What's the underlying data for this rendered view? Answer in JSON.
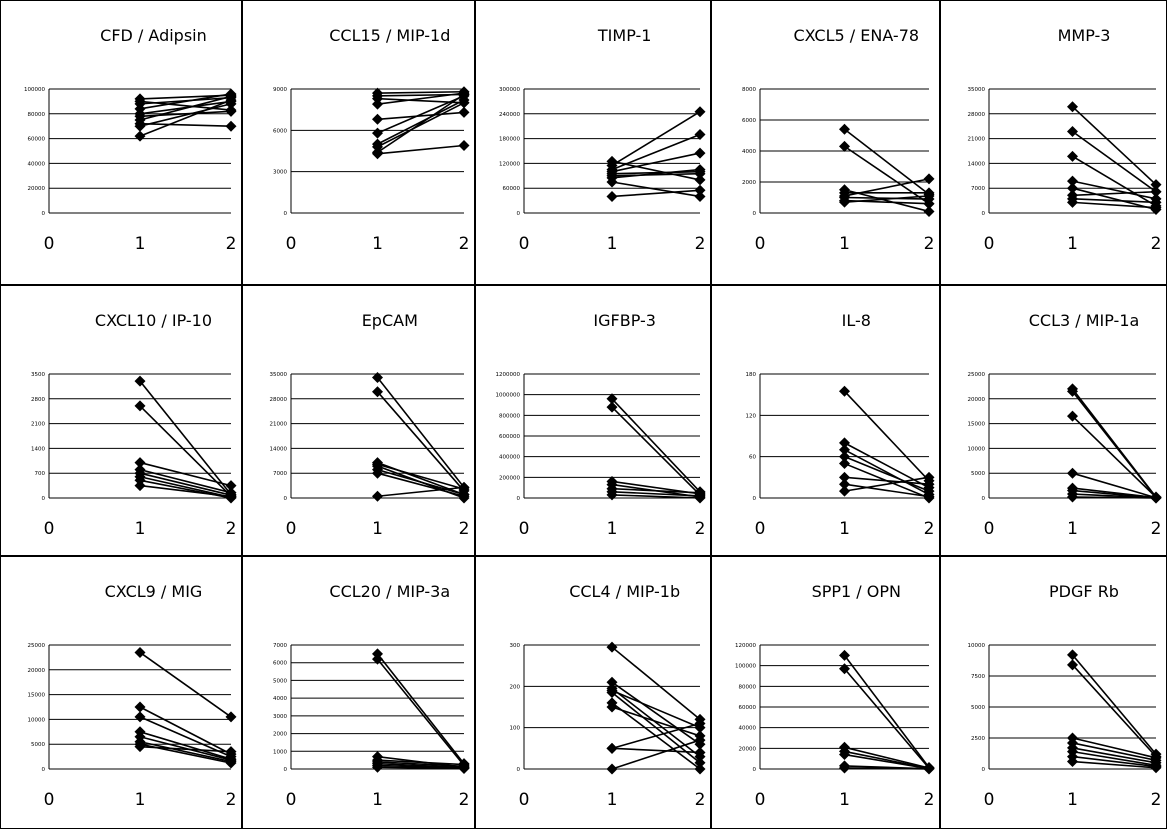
{
  "chart_data": [
    {
      "type": "line",
      "title": "CFD / Adipsin",
      "xticks": [
        "0",
        "1",
        "2"
      ],
      "xlim": [
        0,
        2
      ],
      "ylim": [
        0,
        100000
      ],
      "yticks": [
        "0",
        "20000",
        "40000",
        "60000",
        "80000",
        "100000"
      ],
      "grid": true,
      "lines": [
        [
          92000,
          95000
        ],
        [
          88000,
          93000
        ],
        [
          84000,
          96000
        ],
        [
          80000,
          90000
        ],
        [
          78000,
          82000
        ],
        [
          75000,
          94000
        ],
        [
          72000,
          70000
        ],
        [
          70000,
          88000
        ],
        [
          62000,
          91000
        ],
        [
          90000,
          83000
        ]
      ]
    },
    {
      "type": "line",
      "title": "CCL15 / MIP-1d",
      "xticks": [
        "0",
        "1",
        "2"
      ],
      "xlim": [
        0,
        2
      ],
      "ylim": [
        0,
        9000
      ],
      "yticks": [
        "0",
        "3000",
        "6000",
        "9000"
      ],
      "grid": true,
      "lines": [
        [
          8700,
          8800
        ],
        [
          8500,
          8600
        ],
        [
          8300,
          8000
        ],
        [
          7900,
          8700
        ],
        [
          6800,
          7300
        ],
        [
          5800,
          8500
        ],
        [
          5000,
          8200
        ],
        [
          4800,
          8000
        ],
        [
          4300,
          4900
        ],
        [
          4400,
          8600
        ]
      ]
    },
    {
      "type": "line",
      "title": "TIMP-1",
      "xticks": [
        "0",
        "1",
        "2"
      ],
      "xlim": [
        0,
        2
      ],
      "ylim": [
        0,
        300000
      ],
      "yticks": [
        "0",
        "60000",
        "120000",
        "180000",
        "240000",
        "300000"
      ],
      "grid": true,
      "lines": [
        [
          125000,
          80000
        ],
        [
          115000,
          245000
        ],
        [
          105000,
          190000
        ],
        [
          100000,
          145000
        ],
        [
          90000,
          95000
        ],
        [
          85000,
          105000
        ],
        [
          75000,
          40000
        ],
        [
          95000,
          100000
        ],
        [
          40000,
          55000
        ]
      ]
    },
    {
      "type": "line",
      "title": "CXCL5 / ENA-78",
      "xticks": [
        "0",
        "1",
        "2"
      ],
      "xlim": [
        0,
        2
      ],
      "ylim": [
        0,
        8000
      ],
      "yticks": [
        "0",
        "2000",
        "4000",
        "6000",
        "8000"
      ],
      "grid": true,
      "lines": [
        [
          5400,
          1200
        ],
        [
          4300,
          600
        ],
        [
          1500,
          100
        ],
        [
          1300,
          1300
        ],
        [
          1100,
          2200
        ],
        [
          1000,
          900
        ],
        [
          800,
          600
        ],
        [
          700,
          1100
        ]
      ]
    },
    {
      "type": "line",
      "title": "MMP-3",
      "xticks": [
        "0",
        "1",
        "2"
      ],
      "xlim": [
        0,
        2
      ],
      "ylim": [
        0,
        35000
      ],
      "yticks": [
        "0",
        "7000",
        "14000",
        "21000",
        "28000",
        "35000"
      ],
      "grid": true,
      "lines": [
        [
          30000,
          8000
        ],
        [
          23000,
          6000
        ],
        [
          16000,
          2000
        ],
        [
          9000,
          4000
        ],
        [
          7000,
          1000
        ],
        [
          5000,
          6000
        ],
        [
          4000,
          3000
        ],
        [
          3000,
          1500
        ]
      ]
    },
    {
      "type": "line",
      "title": "CXCL10 / IP-10",
      "xticks": [
        "0",
        "1",
        "2"
      ],
      "xlim": [
        0,
        2
      ],
      "ylim": [
        0,
        3500
      ],
      "yticks": [
        "0",
        "700",
        "1400",
        "2100",
        "2800",
        "3500"
      ],
      "grid": true,
      "lines": [
        [
          3300,
          100
        ],
        [
          2600,
          50
        ],
        [
          1000,
          350
        ],
        [
          800,
          150
        ],
        [
          700,
          80
        ],
        [
          600,
          20
        ],
        [
          500,
          0
        ],
        [
          350,
          40
        ]
      ]
    },
    {
      "type": "line",
      "title": "EpCAM",
      "xticks": [
        "0",
        "1",
        "2"
      ],
      "xlim": [
        0,
        2
      ],
      "ylim": [
        0,
        35000
      ],
      "yticks": [
        "0",
        "7000",
        "14000",
        "21000",
        "28000",
        "35000"
      ],
      "grid": true,
      "lines": [
        [
          34000,
          3000
        ],
        [
          30000,
          2000
        ],
        [
          10000,
          1000
        ],
        [
          9500,
          2500
        ],
        [
          9000,
          0
        ],
        [
          8000,
          1000
        ],
        [
          7000,
          500
        ],
        [
          500,
          3000
        ]
      ]
    },
    {
      "type": "line",
      "title": "IGFBP-3",
      "xticks": [
        "0",
        "1",
        "2"
      ],
      "xlim": [
        0,
        2
      ],
      "ylim": [
        0,
        1200000
      ],
      "yticks": [
        "0",
        "200000",
        "400000",
        "600000",
        "800000",
        "1000000",
        "1200000"
      ],
      "grid": true,
      "lines": [
        [
          960000,
          60000
        ],
        [
          880000,
          30000
        ],
        [
          160000,
          40000
        ],
        [
          130000,
          10000
        ],
        [
          90000,
          50000
        ],
        [
          60000,
          20000
        ],
        [
          30000,
          0
        ]
      ]
    },
    {
      "type": "line",
      "title": "IL-8",
      "xticks": [
        "0",
        "1",
        "2"
      ],
      "xlim": [
        0,
        2
      ],
      "ylim": [
        0,
        180
      ],
      "yticks": [
        "0",
        "60",
        "120",
        "180"
      ],
      "grid": true,
      "lines": [
        [
          155,
          25
        ],
        [
          80,
          15
        ],
        [
          70,
          5
        ],
        [
          60,
          10
        ],
        [
          50,
          0
        ],
        [
          30,
          20
        ],
        [
          20,
          2
        ],
        [
          10,
          30
        ]
      ]
    },
    {
      "type": "line",
      "title": "CCL3 / MIP-1a",
      "xticks": [
        "0",
        "1",
        "2"
      ],
      "xlim": [
        0,
        2
      ],
      "ylim": [
        0,
        25000
      ],
      "yticks": [
        "0",
        "5000",
        "10000",
        "15000",
        "20000",
        "25000"
      ],
      "grid": true,
      "lines": [
        [
          22000,
          200
        ],
        [
          21500,
          100
        ],
        [
          16500,
          150
        ],
        [
          5000,
          50
        ],
        [
          2000,
          80
        ],
        [
          1500,
          30
        ],
        [
          800,
          20
        ],
        [
          200,
          10
        ]
      ]
    },
    {
      "type": "line",
      "title": "CXCL9 / MIG",
      "xticks": [
        "0",
        "1",
        "2"
      ],
      "xlim": [
        0,
        2
      ],
      "ylim": [
        0,
        25000
      ],
      "yticks": [
        "0",
        "5000",
        "10000",
        "15000",
        "20000",
        "25000"
      ],
      "grid": true,
      "lines": [
        [
          23500,
          10500
        ],
        [
          12500,
          3000
        ],
        [
          10500,
          2500
        ],
        [
          7500,
          2000
        ],
        [
          6500,
          1800
        ],
        [
          5500,
          1500
        ],
        [
          5000,
          1200
        ],
        [
          4500,
          3500
        ]
      ]
    },
    {
      "type": "line",
      "title": "CCL20 / MIP-3a",
      "xticks": [
        "0",
        "1",
        "2"
      ],
      "xlim": [
        0,
        2
      ],
      "ylim": [
        0,
        7000
      ],
      "yticks": [
        "0",
        "1000",
        "2000",
        "3000",
        "4000",
        "5000",
        "6000",
        "7000"
      ],
      "grid": true,
      "lines": [
        [
          6500,
          300
        ],
        [
          6200,
          200
        ],
        [
          700,
          100
        ],
        [
          500,
          250
        ],
        [
          400,
          150
        ],
        [
          300,
          80
        ],
        [
          200,
          50
        ],
        [
          100,
          30
        ]
      ]
    },
    {
      "type": "line",
      "title": "CCL4 / MIP-1b",
      "xticks": [
        "0",
        "1",
        "2"
      ],
      "xlim": [
        0,
        2
      ],
      "ylim": [
        0,
        300
      ],
      "yticks": [
        "0",
        "100",
        "200",
        "300"
      ],
      "grid": true,
      "lines": [
        [
          295,
          120
        ],
        [
          210,
          60
        ],
        [
          195,
          30
        ],
        [
          190,
          100
        ],
        [
          185,
          15
        ],
        [
          160,
          0
        ],
        [
          150,
          80
        ],
        [
          50,
          110
        ],
        [
          0,
          70
        ],
        [
          50,
          40
        ]
      ]
    },
    {
      "type": "line",
      "title": "SPP1 / OPN",
      "xticks": [
        "0",
        "1",
        "2"
      ],
      "xlim": [
        0,
        2
      ],
      "ylim": [
        0,
        120000
      ],
      "yticks": [
        "0",
        "20000",
        "40000",
        "60000",
        "80000",
        "100000",
        "120000"
      ],
      "grid": true,
      "lines": [
        [
          110000,
          1500
        ],
        [
          97000,
          800
        ],
        [
          21000,
          1000
        ],
        [
          17000,
          500
        ],
        [
          14000,
          300
        ],
        [
          3000,
          200
        ],
        [
          1000,
          100
        ]
      ]
    },
    {
      "type": "line",
      "title": "PDGF Rb",
      "xticks": [
        "0",
        "1",
        "2"
      ],
      "xlim": [
        0,
        2
      ],
      "ylim": [
        0,
        10000
      ],
      "yticks": [
        "0",
        "2500",
        "5000",
        "7500",
        "10000"
      ],
      "grid": true,
      "lines": [
        [
          9200,
          1200
        ],
        [
          8400,
          1000
        ],
        [
          2500,
          900
        ],
        [
          2100,
          700
        ],
        [
          1700,
          500
        ],
        [
          1400,
          300
        ],
        [
          1000,
          200
        ],
        [
          600,
          100
        ]
      ]
    }
  ]
}
